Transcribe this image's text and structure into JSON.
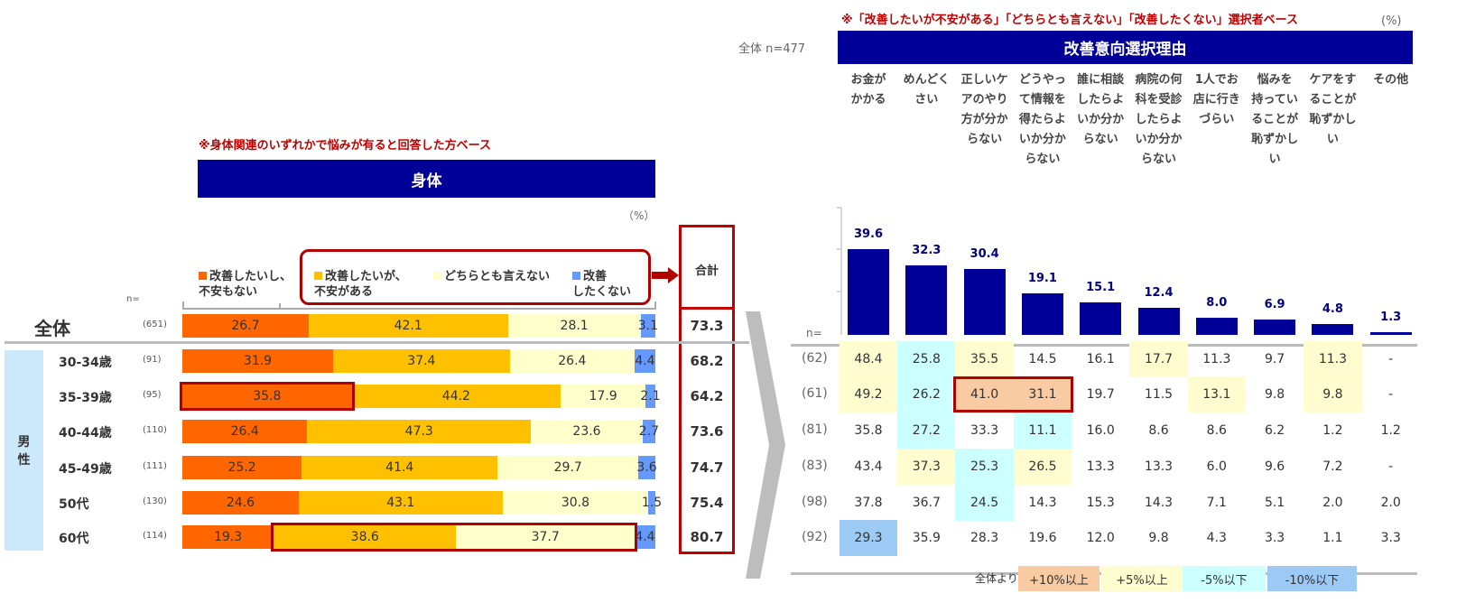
{
  "colors": {
    "navy": "#000099",
    "note_red": "#c00000",
    "seg": [
      "#ff6600",
      "#ffc000",
      "#ffffcc",
      "#6699ff"
    ],
    "p10": "#f8cba3",
    "p5": "#fffdd0",
    "m5": "#ccffff",
    "m10": "#9dc9f5",
    "group_bg": "#cce8fb"
  },
  "chart_data": [
    {
      "type": "bar",
      "stacked": true,
      "orientation": "horizontal",
      "note": "※身体関連のいずれかで悩みが有ると回答した方ベース",
      "title": "身体",
      "unit": "（%）",
      "n_label": "n=",
      "total_label": "合計",
      "group_label": "男\n性",
      "legend": [
        "改善したいし、\n不安もない",
        "改善したいが、\n不安がある",
        "どちらとも言えない",
        "改善\nしたくない"
      ],
      "xlim": [
        0,
        100
      ],
      "rows": [
        {
          "label": "全体",
          "n": "(651)",
          "values": [
            26.7,
            42.1,
            28.1,
            3.1
          ],
          "total": "73.3"
        },
        {
          "label": "30-34歳",
          "n": "(91)",
          "values": [
            31.9,
            37.4,
            26.4,
            4.4
          ],
          "total": "68.2"
        },
        {
          "label": "35-39歳",
          "n": "(95)",
          "values": [
            35.8,
            44.2,
            17.9,
            2.1
          ],
          "total": "64.2"
        },
        {
          "label": "40-44歳",
          "n": "(110)",
          "values": [
            26.4,
            47.3,
            23.6,
            2.7
          ],
          "total": "73.6"
        },
        {
          "label": "45-49歳",
          "n": "(111)",
          "values": [
            25.2,
            41.4,
            29.7,
            3.6
          ],
          "total": "74.7"
        },
        {
          "label": "50代",
          "n": "(130)",
          "values": [
            24.6,
            43.1,
            30.8,
            1.5
          ],
          "total": "75.4"
        },
        {
          "label": "60代",
          "n": "(114)",
          "values": [
            19.3,
            38.6,
            37.7,
            4.4
          ],
          "total": "80.7"
        }
      ],
      "emphasis": [
        {
          "row": 2,
          "from": 0,
          "to": 0
        },
        {
          "row": 6,
          "from": 1,
          "to": 2
        }
      ]
    },
    {
      "type": "bar",
      "note": "※「改善したいが不安がある」「どちらとも言えない」「改善したくない」選択者ベース",
      "unit": "(%)",
      "overall_n": "全体 n=477",
      "title": "改善意向選択理由",
      "n_label": "n=",
      "categories": [
        "お金が\nかかる",
        "めんどく\nさい",
        "正しいケ\nアのやり\n方が分か\nらない",
        "どうやっ\nて情報を\n得たらよ\nいか分か\nらない",
        "誰に相談\nしたらよ\nいか分か\nらない",
        "病院の何\n科を受診\nしたらよ\nいか分か\nらない",
        "1人でお\n店に行き\nづらい",
        "悩みを\n持ってい\nることが\n恥ずかし\nい",
        "ケアをす\nることが\n恥ずかし\nい",
        "その他"
      ],
      "values": [
        39.6,
        32.3,
        30.4,
        19.1,
        15.1,
        12.4,
        8.0,
        6.9,
        4.8,
        1.3
      ],
      "value_labels": [
        "39.6",
        "32.3",
        "30.4",
        "19.1",
        "15.1",
        "12.4",
        "8.0",
        "6.9",
        "4.8",
        "1.3"
      ],
      "ylim": [
        0,
        40
      ],
      "table": [
        {
          "n": "(62)",
          "values": [
            "48.4",
            "25.8",
            "35.5",
            "14.5",
            "16.1",
            "17.7",
            "11.3",
            "9.7",
            "11.3",
            "-"
          ],
          "hl": [
            "p5",
            "m5",
            "p5",
            "",
            "",
            "p5",
            "",
            "",
            "p5",
            ""
          ]
        },
        {
          "n": "(61)",
          "values": [
            "49.2",
            "26.2",
            "41.0",
            "31.1",
            "19.7",
            "11.5",
            "13.1",
            "9.8",
            "9.8",
            "-"
          ],
          "hl": [
            "p5",
            "m5",
            "p10",
            "p10",
            "",
            "",
            "p5",
            "",
            "p5",
            ""
          ]
        },
        {
          "n": "(81)",
          "values": [
            "35.8",
            "27.2",
            "33.3",
            "11.1",
            "16.0",
            "8.6",
            "8.6",
            "6.2",
            "1.2",
            "1.2"
          ],
          "hl": [
            "",
            "m5",
            "",
            "m5",
            "",
            "",
            "",
            "",
            "",
            ""
          ]
        },
        {
          "n": "(83)",
          "values": [
            "43.4",
            "37.3",
            "25.3",
            "26.5",
            "13.3",
            "13.3",
            "6.0",
            "9.6",
            "7.2",
            "-"
          ],
          "hl": [
            "",
            "p5",
            "m5",
            "p5",
            "",
            "",
            "",
            "",
            "",
            ""
          ]
        },
        {
          "n": "(98)",
          "values": [
            "37.8",
            "36.7",
            "24.5",
            "14.3",
            "15.3",
            "14.3",
            "7.1",
            "5.1",
            "2.0",
            "2.0"
          ],
          "hl": [
            "",
            "",
            "m5",
            "",
            "",
            "",
            "",
            "",
            "",
            ""
          ]
        },
        {
          "n": "(92)",
          "values": [
            "29.3",
            "35.9",
            "28.3",
            "19.6",
            "12.0",
            "9.8",
            "4.3",
            "3.3",
            "1.1",
            "3.3"
          ],
          "hl": [
            "m10",
            "",
            "",
            "",
            "",
            "",
            "",
            "",
            "",
            ""
          ]
        }
      ],
      "emphasis": [
        {
          "row": 1,
          "from": 2,
          "to": 3
        }
      ],
      "legend": {
        "prefix": "全体より",
        "items": [
          {
            "key": "p10",
            "label": "+10%以上"
          },
          {
            "key": "p5",
            "label": "+5%以上"
          },
          {
            "key": "m5",
            "label": "-5%以下"
          },
          {
            "key": "m10",
            "label": "-10%以下"
          }
        ]
      }
    }
  ]
}
